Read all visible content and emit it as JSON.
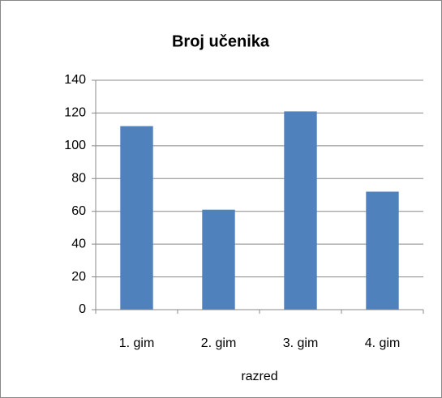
{
  "chart_data": {
    "type": "bar",
    "title": "Broj učenika",
    "x_label": "razred",
    "categories": [
      "1. gim",
      "2. gim",
      "3. gim",
      "4. gim"
    ],
    "values": [
      112,
      61,
      121,
      72
    ],
    "color": "#4f81bd",
    "ylim": [
      0,
      140
    ],
    "yticks": [
      0,
      20,
      40,
      60,
      80,
      100,
      120,
      140
    ],
    "grid": true
  }
}
